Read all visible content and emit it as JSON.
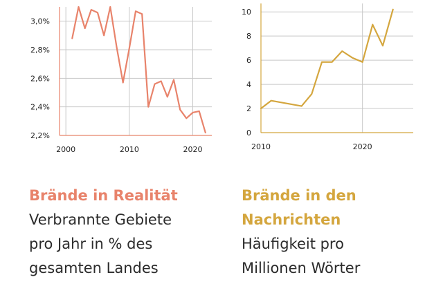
{
  "colors": {
    "reality": "#E8836B",
    "news": "#D4A63E",
    "grid": "#C8C8C8",
    "text": "#2B2B2B"
  },
  "chart_data": [
    {
      "type": "line",
      "x": [
        2001,
        2002,
        2003,
        2004,
        2005,
        2006,
        2007,
        2008,
        2009,
        2010,
        2011,
        2012,
        2013,
        2014,
        2015,
        2016,
        2017,
        2018,
        2019,
        2020,
        2021,
        2022
      ],
      "series": [
        {
          "values": [
            2.88,
            3.1,
            2.95,
            3.08,
            3.06,
            2.9,
            3.1,
            2.82,
            2.57,
            2.81,
            3.07,
            3.05,
            2.4,
            2.56,
            2.58,
            2.47,
            2.59,
            2.38,
            2.32,
            2.36,
            2.37,
            2.22
          ]
        }
      ],
      "xlim": [
        1999,
        2023
      ],
      "ylim": [
        2.2,
        3.1
      ],
      "x_ticks": [
        "2000",
        "2010",
        "2020"
      ],
      "x_tick_values": [
        2000,
        2010,
        2020
      ],
      "y_ticks": [
        "2,2%",
        "2,4%",
        "2,6%",
        "2,8%",
        "3,0%"
      ],
      "y_tick_values": [
        2.2,
        2.4,
        2.6,
        2.8,
        3.0
      ],
      "grid": true,
      "title": "Brände in Realität",
      "subtitle": [
        "Verbrannte Gebiete",
        "pro Jahr in % des",
        "gesamten Landes"
      ]
    },
    {
      "type": "line",
      "x": [
        2010,
        2011,
        2014,
        2015,
        2016,
        2017,
        2018,
        2019,
        2020,
        2021,
        2022,
        2023
      ],
      "series": [
        {
          "values": [
            2.0,
            2.65,
            2.2,
            3.2,
            5.85,
            5.85,
            6.75,
            6.2,
            5.85,
            8.95,
            7.2,
            10.2
          ]
        }
      ],
      "xlim": [
        2010,
        2025
      ],
      "ylim": [
        0,
        10.7
      ],
      "x_ticks": [
        "2010",
        "2020"
      ],
      "x_tick_values": [
        2010,
        2020
      ],
      "y_ticks": [
        "0",
        "2",
        "4",
        "6",
        "8",
        "10"
      ],
      "y_tick_values": [
        0,
        2,
        4,
        6,
        8,
        10
      ],
      "grid": true,
      "title": [
        "Brände in den",
        "Nachrichten"
      ],
      "subtitle": [
        "Häufigkeit pro",
        "Millionen Wörter"
      ]
    }
  ]
}
